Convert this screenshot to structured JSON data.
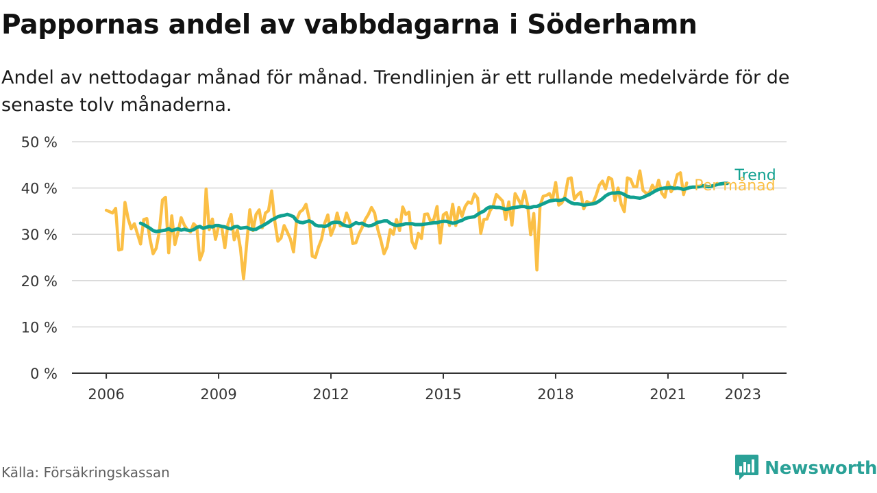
{
  "header": {
    "title": "Pappornas andel av vabbdagarna i Söderhamn",
    "subtitle": "Andel av nettodagar månad för månad. Trendlinjen är ett rullande medelvärde för de senaste tolv månaderna."
  },
  "footer": {
    "source": "Källa: Försäkringskassan",
    "brand": "Newsworthy",
    "brand_icon": "bar-chart-speech-bubble-icon"
  },
  "colors": {
    "monthly": "#fbbf45",
    "trend": "#10a090",
    "grid": "#d9d9d9",
    "axis": "#333333"
  },
  "chart_data": {
    "type": "line",
    "title": "Pappornas andel av vabbdagarna i Söderhamn",
    "xlabel": "",
    "ylabel": "",
    "x_start": "2006-01",
    "x_end": "2023-04",
    "xlim": [
      "2005-02",
      "2024-03"
    ],
    "ylim": [
      0,
      50
    ],
    "y_ticks": [
      0,
      10,
      20,
      30,
      40,
      50
    ],
    "y_tick_labels": [
      "0 %",
      "10 %",
      "20 %",
      "30 %",
      "40 %",
      "50 %"
    ],
    "x_ticks": [
      2006,
      2009,
      2012,
      2015,
      2018,
      2021,
      2023
    ],
    "x_tick_labels": [
      "2006",
      "2009",
      "2012",
      "2015",
      "2018",
      "2021",
      "2023"
    ],
    "grid": "horizontal",
    "legend": "line-end labels",
    "series": [
      {
        "name": "Per månad",
        "start": "2006-01",
        "values": [
          35.2,
          34.9,
          34.6,
          35.6,
          26.6,
          26.8,
          36.9,
          33.4,
          31.2,
          32.3,
          30.1,
          27.9,
          33.2,
          33.4,
          29.0,
          25.8,
          27.0,
          30.6,
          37.4,
          38.0,
          26.0,
          34.0,
          27.8,
          30.5,
          33.6,
          32.0,
          31.0,
          30.5,
          32.3,
          31.6,
          24.5,
          26.3,
          39.8,
          31.0,
          33.3,
          28.9,
          31.8,
          31.6,
          27.1,
          32.2,
          34.3,
          28.8,
          30.9,
          27.0,
          20.4,
          28.0,
          35.3,
          30.8,
          34.3,
          35.3,
          31.4,
          34.6,
          35.1,
          39.4,
          32.9,
          28.5,
          29.2,
          31.9,
          30.5,
          29.0,
          26.2,
          33.1,
          34.8,
          35.3,
          36.5,
          33.5,
          25.3,
          25.0,
          27.2,
          29.0,
          32.4,
          34.2,
          29.8,
          31.5,
          34.6,
          31.8,
          32.0,
          34.6,
          32.8,
          28.0,
          28.2,
          30.1,
          31.5,
          33.2,
          34.3,
          35.8,
          34.6,
          31.1,
          28.7,
          25.8,
          27.3,
          31.0,
          30.0,
          33.2,
          30.8,
          35.9,
          34.3,
          34.8,
          28.4,
          27.0,
          30.2,
          29.1,
          34.3,
          34.4,
          32.6,
          33.3,
          36.0,
          28.1,
          34.2,
          34.7,
          31.9,
          36.5,
          31.9,
          35.8,
          33.9,
          36.0,
          37.0,
          36.7,
          38.7,
          37.8,
          30.2,
          33.2,
          33.3,
          35.1,
          36.1,
          38.6,
          37.9,
          37.2,
          33.2,
          37.0,
          32.0,
          38.8,
          37.6,
          36.3,
          39.3,
          36.4,
          29.9,
          34.5,
          22.3,
          36.2,
          38.2,
          38.4,
          38.8,
          37.5,
          41.2,
          36.3,
          36.8,
          38.2,
          42.0,
          42.2,
          37.6,
          38.5,
          39.1,
          35.5,
          37.1,
          36.7,
          36.8,
          38.5,
          40.6,
          41.5,
          39.8,
          42.3,
          41.9,
          37.3,
          40.0,
          36.5,
          34.9,
          42.2,
          41.9,
          40.3,
          40.3,
          43.7,
          39.5,
          38.9,
          38.9,
          40.6,
          39.4,
          41.7,
          38.9,
          38.0,
          41.3,
          39.2,
          40.3,
          42.9,
          43.3,
          38.6,
          41.1
        ]
      },
      {
        "name": "Trend",
        "start": "2006-12",
        "values": [
          32.4,
          32.1,
          31.7,
          31.3,
          30.8,
          30.6,
          30.7,
          30.8,
          30.9,
          31.2,
          30.8,
          31.0,
          31.2,
          30.9,
          31.1,
          30.9,
          30.8,
          31.0,
          31.5,
          31.7,
          31.3,
          31.5,
          31.7,
          31.6,
          31.9,
          31.9,
          31.7,
          31.6,
          31.3,
          31.2,
          31.6,
          31.7,
          31.3,
          31.4,
          31.5,
          31.2,
          31.0,
          31.1,
          31.5,
          31.8,
          32.2,
          32.6,
          33.1,
          33.4,
          33.8,
          34.0,
          34.1,
          34.3,
          34.1,
          33.8,
          32.9,
          32.6,
          32.5,
          32.7,
          32.9,
          32.6,
          32.0,
          31.8,
          31.8,
          31.7,
          31.9,
          32.4,
          32.6,
          32.6,
          32.5,
          32.0,
          31.8,
          31.7,
          32.1,
          32.5,
          32.3,
          32.4,
          32.0,
          31.8,
          31.9,
          32.2,
          32.6,
          32.7,
          32.9,
          32.9,
          32.4,
          32.1,
          31.9,
          32.0,
          32.1,
          32.3,
          32.3,
          32.3,
          32.1,
          32.1,
          32.1,
          32.2,
          32.3,
          32.4,
          32.5,
          32.5,
          32.7,
          32.8,
          32.8,
          32.6,
          32.4,
          32.5,
          32.8,
          33.0,
          33.4,
          33.6,
          33.7,
          33.8,
          34.3,
          34.7,
          35.0,
          35.6,
          35.9,
          35.9,
          35.8,
          35.8,
          35.6,
          35.4,
          35.5,
          35.7,
          35.8,
          35.9,
          36.0,
          36.0,
          35.8,
          35.8,
          36.0,
          36.0,
          36.3,
          36.6,
          36.9,
          37.2,
          37.3,
          37.4,
          37.3,
          37.4,
          37.7,
          37.2,
          36.8,
          36.6,
          36.6,
          36.5,
          36.3,
          36.4,
          36.5,
          36.6,
          36.8,
          37.2,
          37.7,
          38.3,
          38.7,
          38.9,
          38.9,
          39.0,
          38.9,
          38.6,
          38.2,
          38.0,
          38.0,
          37.9,
          37.8,
          38.0,
          38.3,
          38.6,
          39.0,
          39.4,
          39.7,
          39.9,
          40.0,
          40.0,
          40.1,
          39.9,
          40.0,
          39.9,
          39.7,
          39.9,
          40.1,
          40.2,
          40.2,
          40.3,
          40.5,
          40.4,
          40.3,
          40.4,
          40.6,
          40.8,
          40.9,
          41.0,
          41.0
        ]
      }
    ]
  }
}
